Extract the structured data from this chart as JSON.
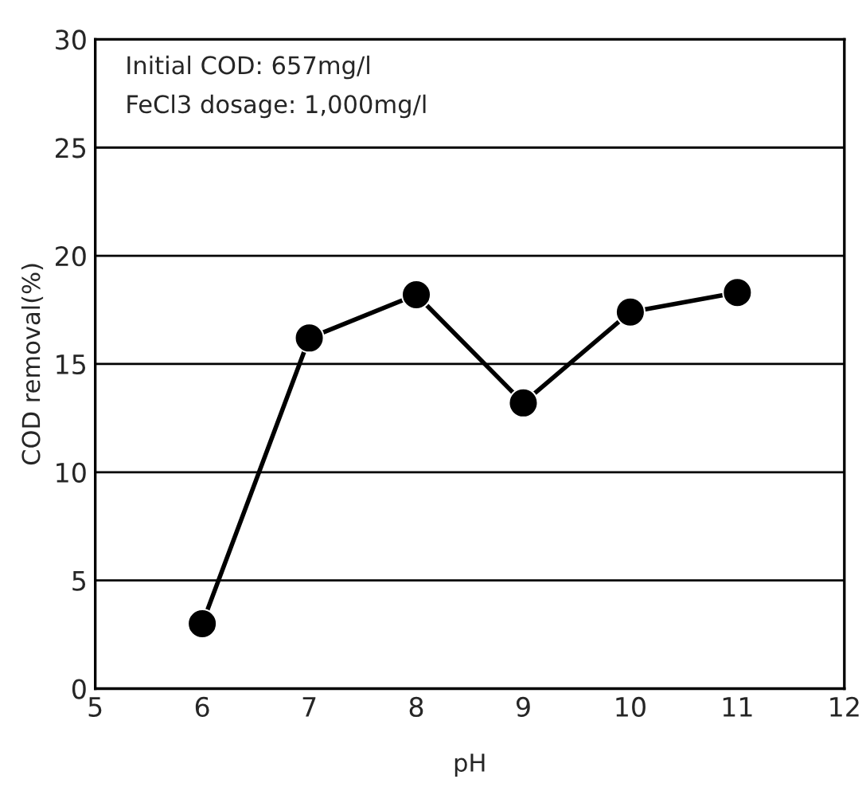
{
  "chart_data": {
    "type": "line",
    "xlabel": "pH",
    "ylabel": "COD removal(%)",
    "annotations": [
      "Initial COD: 657mg/l",
      "FeCl3 dosage: 1,000mg/l"
    ],
    "x": [
      6,
      7,
      8,
      9,
      10,
      11
    ],
    "series": [
      {
        "color": "#000000",
        "values": [
          3,
          16.2,
          18.2,
          13.2,
          17.4,
          18.3
        ]
      }
    ],
    "xlim": [
      5,
      12
    ],
    "ylim": [
      0,
      30
    ],
    "xticks": [
      5,
      6,
      7,
      8,
      9,
      10,
      11,
      12
    ],
    "yticks": [
      0,
      5,
      10,
      15,
      20,
      25,
      30
    ],
    "grid": "y",
    "marker": "circle",
    "line_style": "solid"
  }
}
